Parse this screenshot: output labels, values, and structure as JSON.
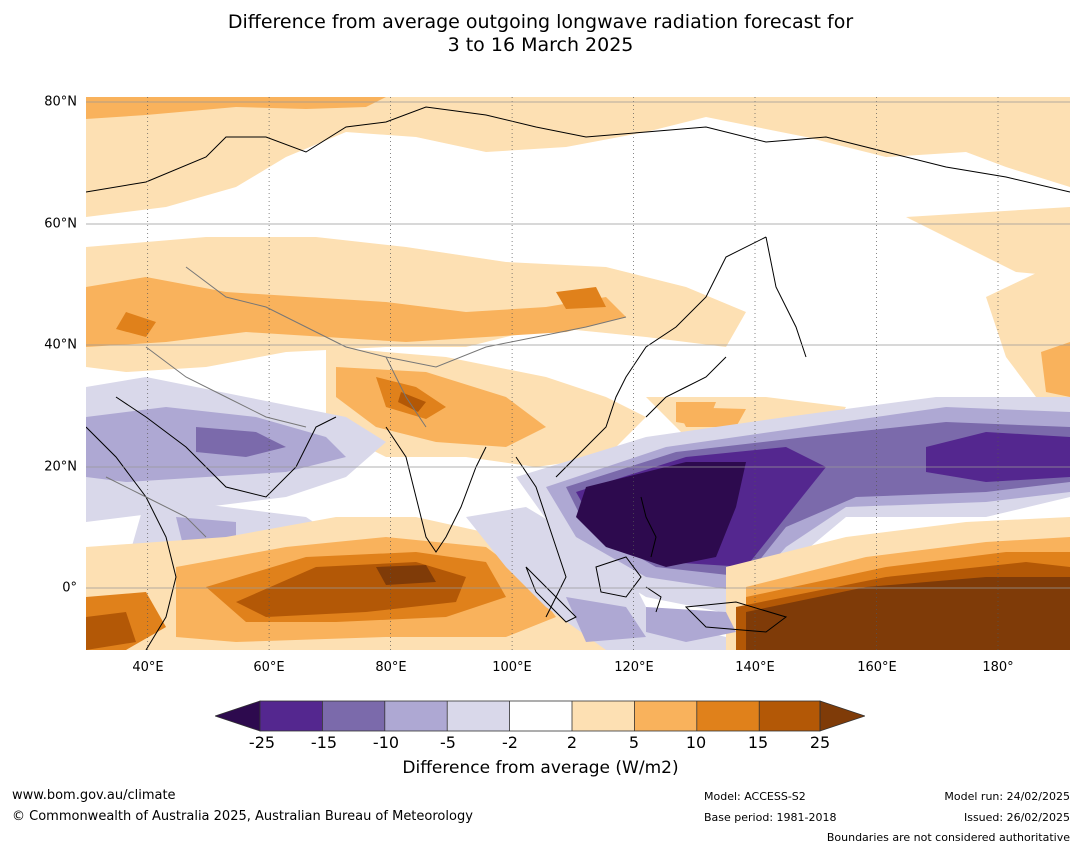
{
  "title": {
    "line1": "Difference from average outgoing longwave radiation forecast for",
    "line2": "3 to 16 March 2025"
  },
  "axes": {
    "lat_labels": [
      "80°N",
      "60°N",
      "40°N",
      "20°N",
      "0°"
    ],
    "lon_labels": [
      "40°E",
      "60°E",
      "80°E",
      "100°E",
      "120°E",
      "140°E",
      "160°E",
      "180°"
    ]
  },
  "colorbar": {
    "ticks": [
      "-25",
      "-15",
      "-10",
      "-5",
      "-2",
      "2",
      "5",
      "10",
      "15",
      "25"
    ],
    "colors": [
      "#2d0a4e",
      "#54278f",
      "#7b6aab",
      "#aea8d3",
      "#d9d8ea",
      "#ffffff",
      "#fde0b3",
      "#f9b25c",
      "#e0811b",
      "#b35806",
      "#7f3b08"
    ],
    "label": "Difference from average (W/m2)"
  },
  "footer": {
    "website": "www.bom.gov.au/climate",
    "copyright": "© Commonwealth of Australia 2025, Australian Bureau of Meteorology",
    "model": "Model: ACCESS-S2",
    "base_period": "Base period: 1981-2018",
    "model_run": "Model run: 24/02/2025",
    "issued": "Issued: 26/02/2025",
    "disclaimer": "Boundaries are not considered authoritative"
  },
  "map": {
    "extent": {
      "lon": [
        30,
        192
      ],
      "lat": [
        -10.5,
        80
      ]
    },
    "anomaly_regions": [
      {
        "name": "arctic-band",
        "level": "light-orange"
      },
      {
        "name": "central-asia-band",
        "level": "orange"
      },
      {
        "name": "tibet-himalaya",
        "level": "dark-orange"
      },
      {
        "name": "arabia-suppression",
        "level": "purple"
      },
      {
        "name": "west-pacific-strong-enhancement",
        "level": "darkest-purple"
      },
      {
        "name": "north-pacific-enhancement",
        "level": "purple"
      },
      {
        "name": "indian-ocean-equatorial",
        "level": "dark-orange"
      },
      {
        "name": "southwest-pacific",
        "level": "darkest-orange"
      }
    ]
  }
}
